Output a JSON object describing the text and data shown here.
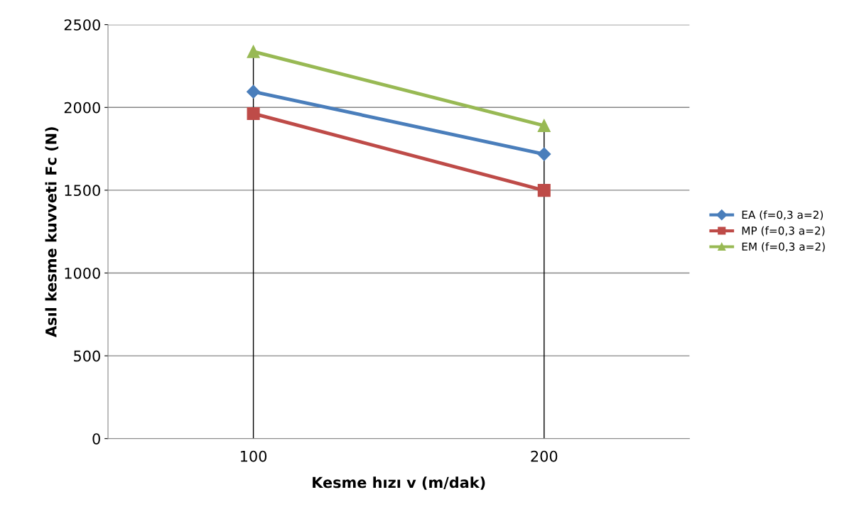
{
  "chart_data": {
    "type": "line",
    "xlabel": "Kesme hızı v (m/dak)",
    "ylabel": "Asıl kesme kuvveti Fc (N)",
    "categories": [
      "100",
      "200"
    ],
    "series": [
      {
        "name": "EA (f=0,3 a=2)",
        "color": "#4a7ebb",
        "marker": "diamond",
        "values": [
          2095,
          1718
        ]
      },
      {
        "name": "MP (f=0,3 a=2)",
        "color": "#be4b48",
        "marker": "square",
        "values": [
          1963,
          1499
        ]
      },
      {
        "name": "EM (f=0,3 a=2)",
        "color": "#98b954",
        "marker": "triangle",
        "values": [
          2337,
          1890
        ]
      }
    ],
    "ylim": [
      0,
      2500
    ],
    "yticks": [
      0,
      500,
      1000,
      1500,
      2000,
      2500
    ],
    "grid": true,
    "legend": "right",
    "line_style": "solid"
  }
}
